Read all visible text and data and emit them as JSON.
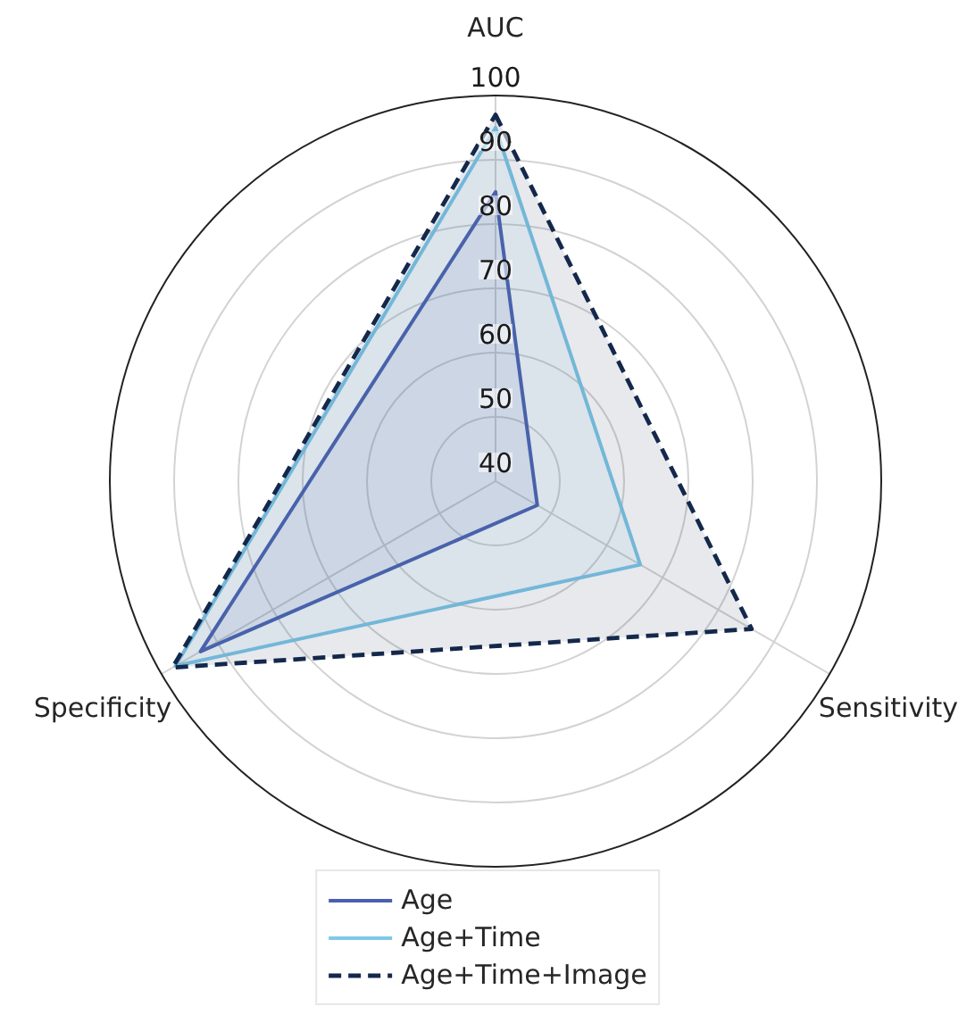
{
  "chart_data": {
    "type": "radar",
    "categories": [
      "AUC",
      "Sensitivity",
      "Specificity"
    ],
    "ylim": [
      40,
      100
    ],
    "yticks": [
      40,
      50,
      60,
      70,
      80,
      90,
      100
    ],
    "grid": true,
    "legend": "bottom",
    "series": [
      {
        "name": "Age",
        "color": "#4a5fb0",
        "values": [
          85,
          47.5,
          93
        ]
      },
      {
        "name": "Age+Time",
        "color": "#7ec8e8",
        "values": [
          95,
          66,
          97.5
        ]
      },
      {
        "name": "Age+Time+Image",
        "color": "#14284b",
        "values": [
          97,
          86,
          98
        ],
        "line_style": "dashed"
      }
    ]
  }
}
